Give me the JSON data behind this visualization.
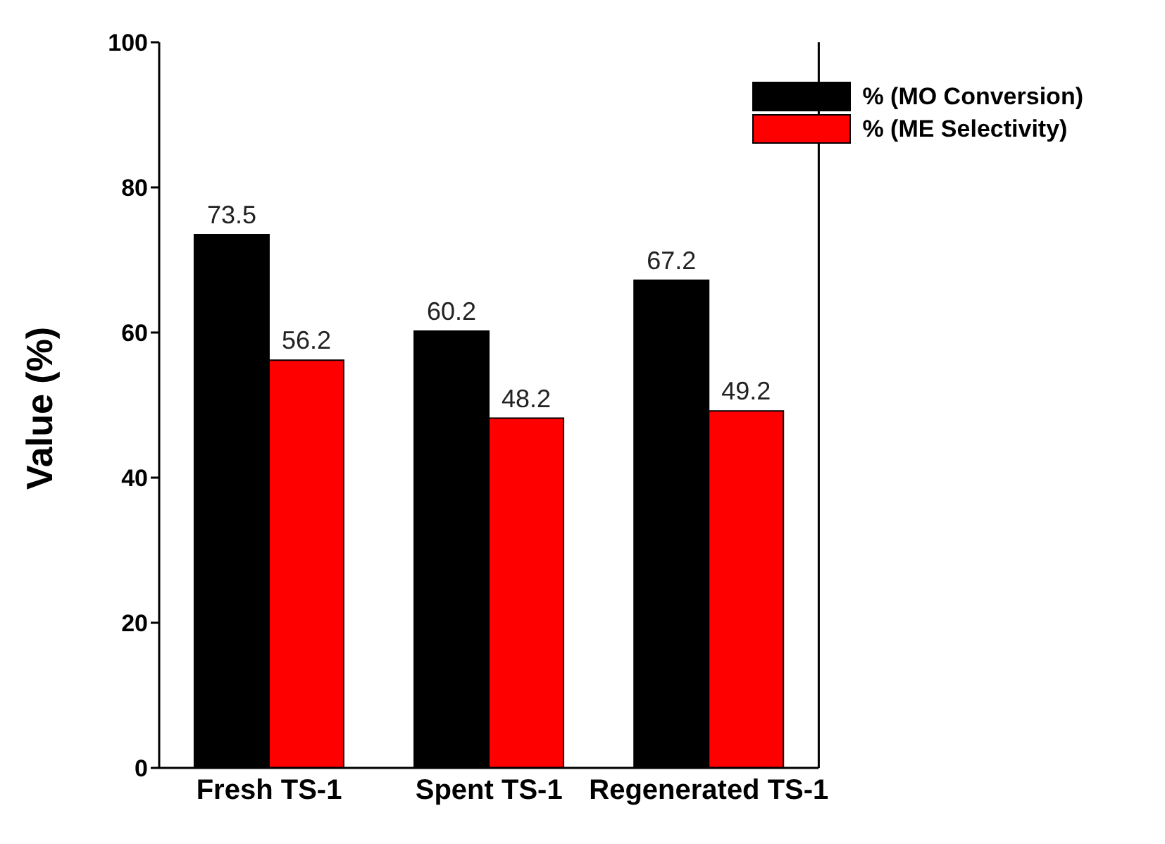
{
  "chart_data": {
    "type": "bar",
    "ylabel": "Value (%)",
    "categories": [
      "Fresh TS-1",
      "Spent TS-1",
      "Regenerated TS-1"
    ],
    "series": [
      {
        "name": "% (MO Conversion)",
        "color": "#000000",
        "values": [
          73.5,
          60.2,
          67.2
        ]
      },
      {
        "name": "% (ME Selectivity)",
        "color": "#ff0000",
        "values": [
          56.2,
          48.2,
          49.2
        ]
      }
    ],
    "ylim": [
      0,
      100
    ],
    "yticks": [
      0,
      20,
      40,
      60,
      80,
      100
    ],
    "data_labels": true,
    "legend": "top right",
    "grid": false
  }
}
